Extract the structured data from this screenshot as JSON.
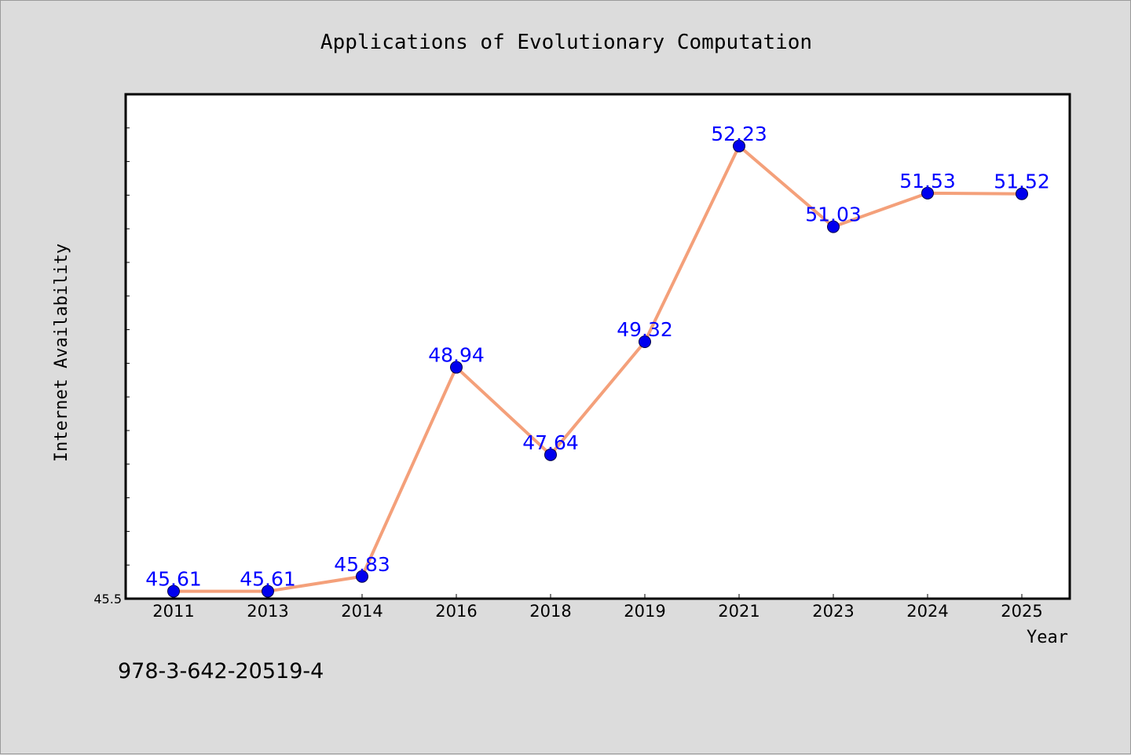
{
  "footnote": "978-3-642-20519-4",
  "colors": {
    "background": "#dcdcdc",
    "plot_background": "#ffffff",
    "line": "#f4a07a",
    "marker": "#0000ee",
    "data_label": "#0000ff"
  },
  "chart_data": {
    "type": "line",
    "title": "Applications of Evolutionary Computation",
    "xlabel": "Year",
    "ylabel": "Internet Availability",
    "categories": [
      "2011",
      "2013",
      "2014",
      "2016",
      "2018",
      "2019",
      "2021",
      "2023",
      "2024",
      "2025"
    ],
    "series": [
      {
        "values": [
          45.61,
          45.61,
          45.83,
          48.94,
          47.64,
          49.32,
          52.23,
          51.03,
          51.53,
          51.52
        ],
        "labels": [
          "45.61",
          "45.61",
          "45.83",
          "48.94",
          "47.64",
          "49.32",
          "52.23",
          "51.03",
          "51.53",
          "51.52"
        ]
      }
    ],
    "yticks": [
      "45.5"
    ],
    "ylim": [
      45.5,
      53.0
    ],
    "minor_ytick_step": 0.5,
    "grid": false,
    "legend": "none"
  }
}
